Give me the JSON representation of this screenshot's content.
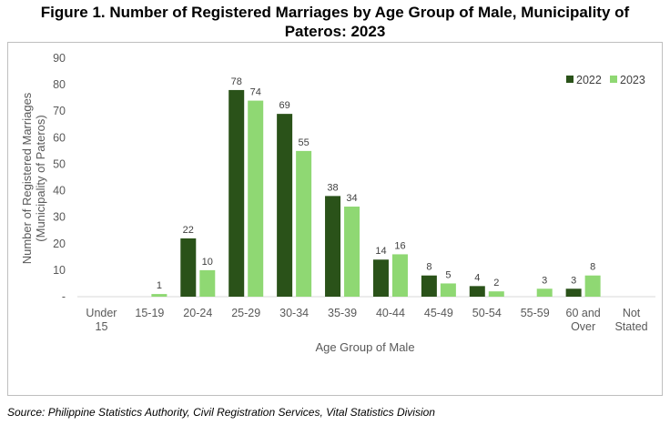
{
  "figure": {
    "title_line1": "Figure 1.  Number of Registered Marriages by Age Group of Male, Municipality of",
    "title_line2": "Pateros: 2023",
    "source": "Source: Philippine Statistics Authority, Civil Registration Services, Vital Statistics Division"
  },
  "chart_data": {
    "type": "bar",
    "title": "Figure 1.  Number of Registered Marriages by Age Group of Male, Municipality of Pateros: 2023",
    "xlabel": "Age Group of Male",
    "ylabel_lines": [
      "Number of Registered Marriages",
      "(Municipality of Pateros)"
    ],
    "ylim": [
      0,
      90
    ],
    "yticks": [
      "-",
      "10",
      "20",
      "30",
      "40",
      "50",
      "60",
      "70",
      "80",
      "90"
    ],
    "categories": [
      [
        "Under",
        "15"
      ],
      [
        "15-19"
      ],
      [
        "20-24"
      ],
      [
        "25-29"
      ],
      [
        "30-34"
      ],
      [
        "35-39"
      ],
      [
        "40-44"
      ],
      [
        "45-49"
      ],
      [
        "50-54"
      ],
      [
        "55-59"
      ],
      [
        "60 and",
        "Over"
      ],
      [
        "Not",
        "Stated"
      ]
    ],
    "series": [
      {
        "name": "2022",
        "color": "#2a5219",
        "values": [
          0,
          0,
          22,
          78,
          69,
          38,
          14,
          8,
          4,
          0,
          3,
          0
        ]
      },
      {
        "name": "2023",
        "color": "#8fd873",
        "values": [
          0,
          1,
          10,
          74,
          55,
          34,
          16,
          5,
          2,
          3,
          8,
          0
        ]
      }
    ],
    "legend_position": "top-right",
    "grid": false
  }
}
